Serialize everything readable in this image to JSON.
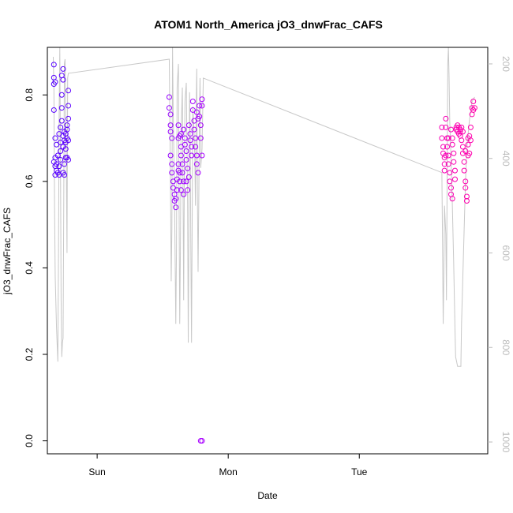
{
  "chart_data": {
    "type": "scatter",
    "title": "ATOM1 North_America jO3_dnwFrac_CAFS",
    "xlabel": "Date",
    "ylabel": "jO3_dnwFrac_CAFS",
    "ylim": [
      -0.03,
      0.91
    ],
    "y_ticks": [
      0.0,
      0.2,
      0.4,
      0.6,
      0.8
    ],
    "y_tick_labels": [
      "0.0",
      "0.2",
      "0.4",
      "0.6",
      "0.8"
    ],
    "xlim": [
      -0.38,
      2.98
    ],
    "x_ticks": [
      0,
      1,
      2
    ],
    "x_tick_labels": [
      "Sun",
      "Mon",
      "Tue"
    ],
    "right_axis": {
      "label": "",
      "reversed": true,
      "lim": [
        1025,
        165
      ],
      "ticks": [
        200,
        400,
        600,
        800,
        1000
      ],
      "tick_labels": [
        "200",
        "400",
        "600",
        "800",
        "1000"
      ],
      "color": "#bbbbbb"
    },
    "colors": {
      "start": "#5500ff",
      "mid": "#cc00ff",
      "end": "#ff00aa",
      "line": "#c8c8c8"
    },
    "grid": false,
    "series": [
      {
        "values": [
          {
            "x": -0.33,
            "y": 0.87
          },
          {
            "x": -0.33,
            "y": 0.84
          },
          {
            "x": -0.33,
            "y": 0.825
          },
          {
            "x": -0.32,
            "y": 0.83
          },
          {
            "x": -0.33,
            "y": 0.765
          },
          {
            "x": -0.32,
            "y": 0.7
          },
          {
            "x": -0.31,
            "y": 0.685
          },
          {
            "x": -0.32,
            "y": 0.655
          },
          {
            "x": -0.33,
            "y": 0.645
          },
          {
            "x": -0.32,
            "y": 0.635
          },
          {
            "x": -0.31,
            "y": 0.625
          },
          {
            "x": -0.32,
            "y": 0.615
          },
          {
            "x": -0.3,
            "y": 0.62
          },
          {
            "x": -0.31,
            "y": 0.64
          },
          {
            "x": -0.3,
            "y": 0.66
          },
          {
            "x": -0.29,
            "y": 0.615
          },
          {
            "x": -0.29,
            "y": 0.635
          },
          {
            "x": -0.28,
            "y": 0.65
          },
          {
            "x": -0.28,
            "y": 0.67
          },
          {
            "x": -0.28,
            "y": 0.69
          },
          {
            "x": -0.29,
            "y": 0.71
          },
          {
            "x": -0.28,
            "y": 0.725
          },
          {
            "x": -0.27,
            "y": 0.74
          },
          {
            "x": -0.27,
            "y": 0.77
          },
          {
            "x": -0.27,
            "y": 0.8
          },
          {
            "x": -0.26,
            "y": 0.835
          },
          {
            "x": -0.26,
            "y": 0.86
          },
          {
            "x": -0.27,
            "y": 0.845
          },
          {
            "x": -0.26,
            "y": 0.705
          },
          {
            "x": -0.26,
            "y": 0.68
          },
          {
            "x": -0.25,
            "y": 0.695
          },
          {
            "x": -0.25,
            "y": 0.715
          },
          {
            "x": -0.24,
            "y": 0.71
          },
          {
            "x": -0.24,
            "y": 0.69
          },
          {
            "x": -0.24,
            "y": 0.655
          },
          {
            "x": -0.23,
            "y": 0.7
          },
          {
            "x": -0.23,
            "y": 0.72
          },
          {
            "x": -0.22,
            "y": 0.695
          },
          {
            "x": -0.25,
            "y": 0.615
          },
          {
            "x": -0.25,
            "y": 0.64
          },
          {
            "x": -0.24,
            "y": 0.675
          },
          {
            "x": -0.23,
            "y": 0.73
          },
          {
            "x": -0.22,
            "y": 0.745
          },
          {
            "x": -0.22,
            "y": 0.775
          },
          {
            "x": -0.22,
            "y": 0.81
          },
          {
            "x": -0.23,
            "y": 0.655
          },
          {
            "x": -0.22,
            "y": 0.65
          },
          {
            "x": -0.26,
            "y": 0.62
          },
          {
            "x": 0.55,
            "y": 0.795
          },
          {
            "x": 0.55,
            "y": 0.77
          },
          {
            "x": 0.56,
            "y": 0.755
          },
          {
            "x": 0.56,
            "y": 0.73
          },
          {
            "x": 0.56,
            "y": 0.715
          },
          {
            "x": 0.57,
            "y": 0.7
          },
          {
            "x": 0.56,
            "y": 0.66
          },
          {
            "x": 0.57,
            "y": 0.64
          },
          {
            "x": 0.57,
            "y": 0.62
          },
          {
            "x": 0.58,
            "y": 0.6
          },
          {
            "x": 0.58,
            "y": 0.585
          },
          {
            "x": 0.59,
            "y": 0.57
          },
          {
            "x": 0.59,
            "y": 0.555
          },
          {
            "x": 0.6,
            "y": 0.54
          },
          {
            "x": 0.6,
            "y": 0.56
          },
          {
            "x": 0.61,
            "y": 0.58
          },
          {
            "x": 0.61,
            "y": 0.605
          },
          {
            "x": 0.62,
            "y": 0.625
          },
          {
            "x": 0.62,
            "y": 0.64
          },
          {
            "x": 0.63,
            "y": 0.62
          },
          {
            "x": 0.63,
            "y": 0.6
          },
          {
            "x": 0.64,
            "y": 0.58
          },
          {
            "x": 0.62,
            "y": 0.7
          },
          {
            "x": 0.62,
            "y": 0.73
          },
          {
            "x": 0.63,
            "y": 0.705
          },
          {
            "x": 0.64,
            "y": 0.68
          },
          {
            "x": 0.64,
            "y": 0.66
          },
          {
            "x": 0.65,
            "y": 0.64
          },
          {
            "x": 0.65,
            "y": 0.62
          },
          {
            "x": 0.66,
            "y": 0.6
          },
          {
            "x": 0.66,
            "y": 0.57
          },
          {
            "x": 0.66,
            "y": 0.72
          },
          {
            "x": 0.67,
            "y": 0.7
          },
          {
            "x": 0.67,
            "y": 0.685
          },
          {
            "x": 0.68,
            "y": 0.67
          },
          {
            "x": 0.68,
            "y": 0.65
          },
          {
            "x": 0.69,
            "y": 0.63
          },
          {
            "x": 0.7,
            "y": 0.61
          },
          {
            "x": 0.7,
            "y": 0.73
          },
          {
            "x": 0.71,
            "y": 0.71
          },
          {
            "x": 0.71,
            "y": 0.695
          },
          {
            "x": 0.72,
            "y": 0.68
          },
          {
            "x": 0.72,
            "y": 0.66
          },
          {
            "x": 0.73,
            "y": 0.785
          },
          {
            "x": 0.73,
            "y": 0.765
          },
          {
            "x": 0.74,
            "y": 0.74
          },
          {
            "x": 0.74,
            "y": 0.72
          },
          {
            "x": 0.75,
            "y": 0.7
          },
          {
            "x": 0.75,
            "y": 0.68
          },
          {
            "x": 0.76,
            "y": 0.66
          },
          {
            "x": 0.76,
            "y": 0.64
          },
          {
            "x": 0.77,
            "y": 0.62
          },
          {
            "x": 0.76,
            "y": 0.76
          },
          {
            "x": 0.77,
            "y": 0.745
          },
          {
            "x": 0.78,
            "y": 0.775
          },
          {
            "x": 0.78,
            "y": 0.75
          },
          {
            "x": 0.79,
            "y": 0.73
          },
          {
            "x": 0.79,
            "y": 0.7
          },
          {
            "x": 0.8,
            "y": 0.66
          },
          {
            "x": 0.8,
            "y": 0.775
          },
          {
            "x": 0.8,
            "y": 0.79
          },
          {
            "x": 0.64,
            "y": 0.71
          },
          {
            "x": 0.68,
            "y": 0.6
          },
          {
            "x": 0.69,
            "y": 0.58
          },
          {
            "x": 0.79,
            "y": 0.0
          },
          {
            "x": 0.8,
            "y": 0.0
          },
          {
            "x": 2.63,
            "y": 0.725
          },
          {
            "x": 2.63,
            "y": 0.7
          },
          {
            "x": 2.64,
            "y": 0.68
          },
          {
            "x": 2.64,
            "y": 0.665
          },
          {
            "x": 2.65,
            "y": 0.655
          },
          {
            "x": 2.65,
            "y": 0.64
          },
          {
            "x": 2.65,
            "y": 0.625
          },
          {
            "x": 2.66,
            "y": 0.745
          },
          {
            "x": 2.66,
            "y": 0.725
          },
          {
            "x": 2.67,
            "y": 0.7
          },
          {
            "x": 2.67,
            "y": 0.68
          },
          {
            "x": 2.68,
            "y": 0.66
          },
          {
            "x": 2.68,
            "y": 0.64
          },
          {
            "x": 2.69,
            "y": 0.62
          },
          {
            "x": 2.69,
            "y": 0.6
          },
          {
            "x": 2.7,
            "y": 0.585
          },
          {
            "x": 2.7,
            "y": 0.57
          },
          {
            "x": 2.71,
            "y": 0.56
          },
          {
            "x": 2.7,
            "y": 0.72
          },
          {
            "x": 2.71,
            "y": 0.7
          },
          {
            "x": 2.71,
            "y": 0.685
          },
          {
            "x": 2.72,
            "y": 0.665
          },
          {
            "x": 2.72,
            "y": 0.645
          },
          {
            "x": 2.73,
            "y": 0.625
          },
          {
            "x": 2.73,
            "y": 0.605
          },
          {
            "x": 2.74,
            "y": 0.725
          },
          {
            "x": 2.74,
            "y": 0.72
          },
          {
            "x": 2.75,
            "y": 0.73
          },
          {
            "x": 2.75,
            "y": 0.715
          },
          {
            "x": 2.76,
            "y": 0.725
          },
          {
            "x": 2.76,
            "y": 0.71
          },
          {
            "x": 2.77,
            "y": 0.72
          },
          {
            "x": 2.77,
            "y": 0.715
          },
          {
            "x": 2.78,
            "y": 0.725
          },
          {
            "x": 2.78,
            "y": 0.695
          },
          {
            "x": 2.79,
            "y": 0.68
          },
          {
            "x": 2.79,
            "y": 0.665
          },
          {
            "x": 2.8,
            "y": 0.645
          },
          {
            "x": 2.8,
            "y": 0.625
          },
          {
            "x": 2.81,
            "y": 0.6
          },
          {
            "x": 2.81,
            "y": 0.585
          },
          {
            "x": 2.82,
            "y": 0.565
          },
          {
            "x": 2.82,
            "y": 0.555
          },
          {
            "x": 2.83,
            "y": 0.7
          },
          {
            "x": 2.83,
            "y": 0.685
          },
          {
            "x": 2.84,
            "y": 0.665
          },
          {
            "x": 2.84,
            "y": 0.705
          },
          {
            "x": 2.85,
            "y": 0.695
          },
          {
            "x": 2.85,
            "y": 0.725
          },
          {
            "x": 2.86,
            "y": 0.755
          },
          {
            "x": 2.86,
            "y": 0.77
          },
          {
            "x": 2.87,
            "y": 0.765
          },
          {
            "x": 2.87,
            "y": 0.785
          },
          {
            "x": 2.88,
            "y": 0.77
          },
          {
            "x": 2.83,
            "y": 0.66
          },
          {
            "x": 2.81,
            "y": 0.67
          },
          {
            "x": 2.79,
            "y": 0.715
          },
          {
            "x": 2.77,
            "y": 0.705
          },
          {
            "x": 2.68,
            "y": 0.7
          },
          {
            "x": 2.66,
            "y": 0.66
          }
        ]
      },
      {
        "axis": "right",
        "style": "line",
        "values": [
          {
            "x": -0.335,
            "y": 185
          },
          {
            "x": -0.33,
            "y": 250
          },
          {
            "x": -0.325,
            "y": 500
          },
          {
            "x": -0.32,
            "y": 650
          },
          {
            "x": -0.31,
            "y": 760
          },
          {
            "x": -0.3,
            "y": 830
          },
          {
            "x": -0.295,
            "y": 600
          },
          {
            "x": -0.29,
            "y": 300
          },
          {
            "x": -0.285,
            "y": 165
          },
          {
            "x": -0.28,
            "y": 400
          },
          {
            "x": -0.275,
            "y": 700
          },
          {
            "x": -0.27,
            "y": 820
          },
          {
            "x": -0.265,
            "y": 790
          },
          {
            "x": -0.26,
            "y": 780
          },
          {
            "x": -0.255,
            "y": 500
          },
          {
            "x": -0.25,
            "y": 200
          },
          {
            "x": -0.245,
            "y": 190
          },
          {
            "x": -0.24,
            "y": 300
          },
          {
            "x": -0.235,
            "y": 420
          },
          {
            "x": -0.23,
            "y": 600
          },
          {
            "x": -0.225,
            "y": 230
          },
          {
            "x": -0.22,
            "y": 220
          },
          {
            "x": 0.55,
            "y": 190
          },
          {
            "x": 0.555,
            "y": 330
          },
          {
            "x": 0.56,
            "y": 480
          },
          {
            "x": 0.565,
            "y": 660
          },
          {
            "x": 0.57,
            "y": 550
          },
          {
            "x": 0.575,
            "y": 165
          },
          {
            "x": 0.58,
            "y": 300
          },
          {
            "x": 0.59,
            "y": 480
          },
          {
            "x": 0.6,
            "y": 750
          },
          {
            "x": 0.605,
            "y": 600
          },
          {
            "x": 0.61,
            "y": 250
          },
          {
            "x": 0.62,
            "y": 200
          },
          {
            "x": 0.625,
            "y": 500
          },
          {
            "x": 0.63,
            "y": 750
          },
          {
            "x": 0.635,
            "y": 600
          },
          {
            "x": 0.64,
            "y": 350
          },
          {
            "x": 0.65,
            "y": 250
          },
          {
            "x": 0.655,
            "y": 450
          },
          {
            "x": 0.66,
            "y": 700
          },
          {
            "x": 0.665,
            "y": 450
          },
          {
            "x": 0.67,
            "y": 280
          },
          {
            "x": 0.68,
            "y": 240
          },
          {
            "x": 0.69,
            "y": 500
          },
          {
            "x": 0.695,
            "y": 790
          },
          {
            "x": 0.7,
            "y": 550
          },
          {
            "x": 0.705,
            "y": 260
          },
          {
            "x": 0.71,
            "y": 350
          },
          {
            "x": 0.715,
            "y": 600
          },
          {
            "x": 0.72,
            "y": 790
          },
          {
            "x": 0.725,
            "y": 530
          },
          {
            "x": 0.73,
            "y": 290
          },
          {
            "x": 0.74,
            "y": 350
          },
          {
            "x": 0.745,
            "y": 400
          },
          {
            "x": 0.75,
            "y": 500
          },
          {
            "x": 0.755,
            "y": 300
          },
          {
            "x": 0.76,
            "y": 210
          },
          {
            "x": 0.765,
            "y": 480
          },
          {
            "x": 0.77,
            "y": 640
          },
          {
            "x": 0.775,
            "y": 500
          },
          {
            "x": 0.78,
            "y": 320
          },
          {
            "x": 0.785,
            "y": 230
          },
          {
            "x": 0.79,
            "y": 420
          },
          {
            "x": 0.8,
            "y": 380
          },
          {
            "x": 0.81,
            "y": 230
          },
          {
            "x": 2.63,
            "y": 430
          },
          {
            "x": 2.635,
            "y": 580
          },
          {
            "x": 2.64,
            "y": 750
          },
          {
            "x": 2.645,
            "y": 650
          },
          {
            "x": 2.65,
            "y": 500
          },
          {
            "x": 2.66,
            "y": 560
          },
          {
            "x": 2.665,
            "y": 700
          },
          {
            "x": 2.67,
            "y": 450
          },
          {
            "x": 2.675,
            "y": 200
          },
          {
            "x": 2.68,
            "y": 165
          },
          {
            "x": 2.685,
            "y": 230
          },
          {
            "x": 2.69,
            "y": 320
          },
          {
            "x": 2.7,
            "y": 400
          },
          {
            "x": 2.71,
            "y": 500
          },
          {
            "x": 2.72,
            "y": 620
          },
          {
            "x": 2.73,
            "y": 760
          },
          {
            "x": 2.735,
            "y": 820
          },
          {
            "x": 2.75,
            "y": 840
          },
          {
            "x": 2.76,
            "y": 840
          },
          {
            "x": 2.775,
            "y": 840
          },
          {
            "x": 2.78,
            "y": 750
          },
          {
            "x": 2.79,
            "y": 650
          },
          {
            "x": 2.8,
            "y": 550
          },
          {
            "x": 2.81,
            "y": 450
          },
          {
            "x": 2.82,
            "y": 380
          },
          {
            "x": 2.84,
            "y": 320
          },
          {
            "x": 2.86,
            "y": 280
          },
          {
            "x": 2.88,
            "y": 270
          }
        ]
      }
    ]
  }
}
